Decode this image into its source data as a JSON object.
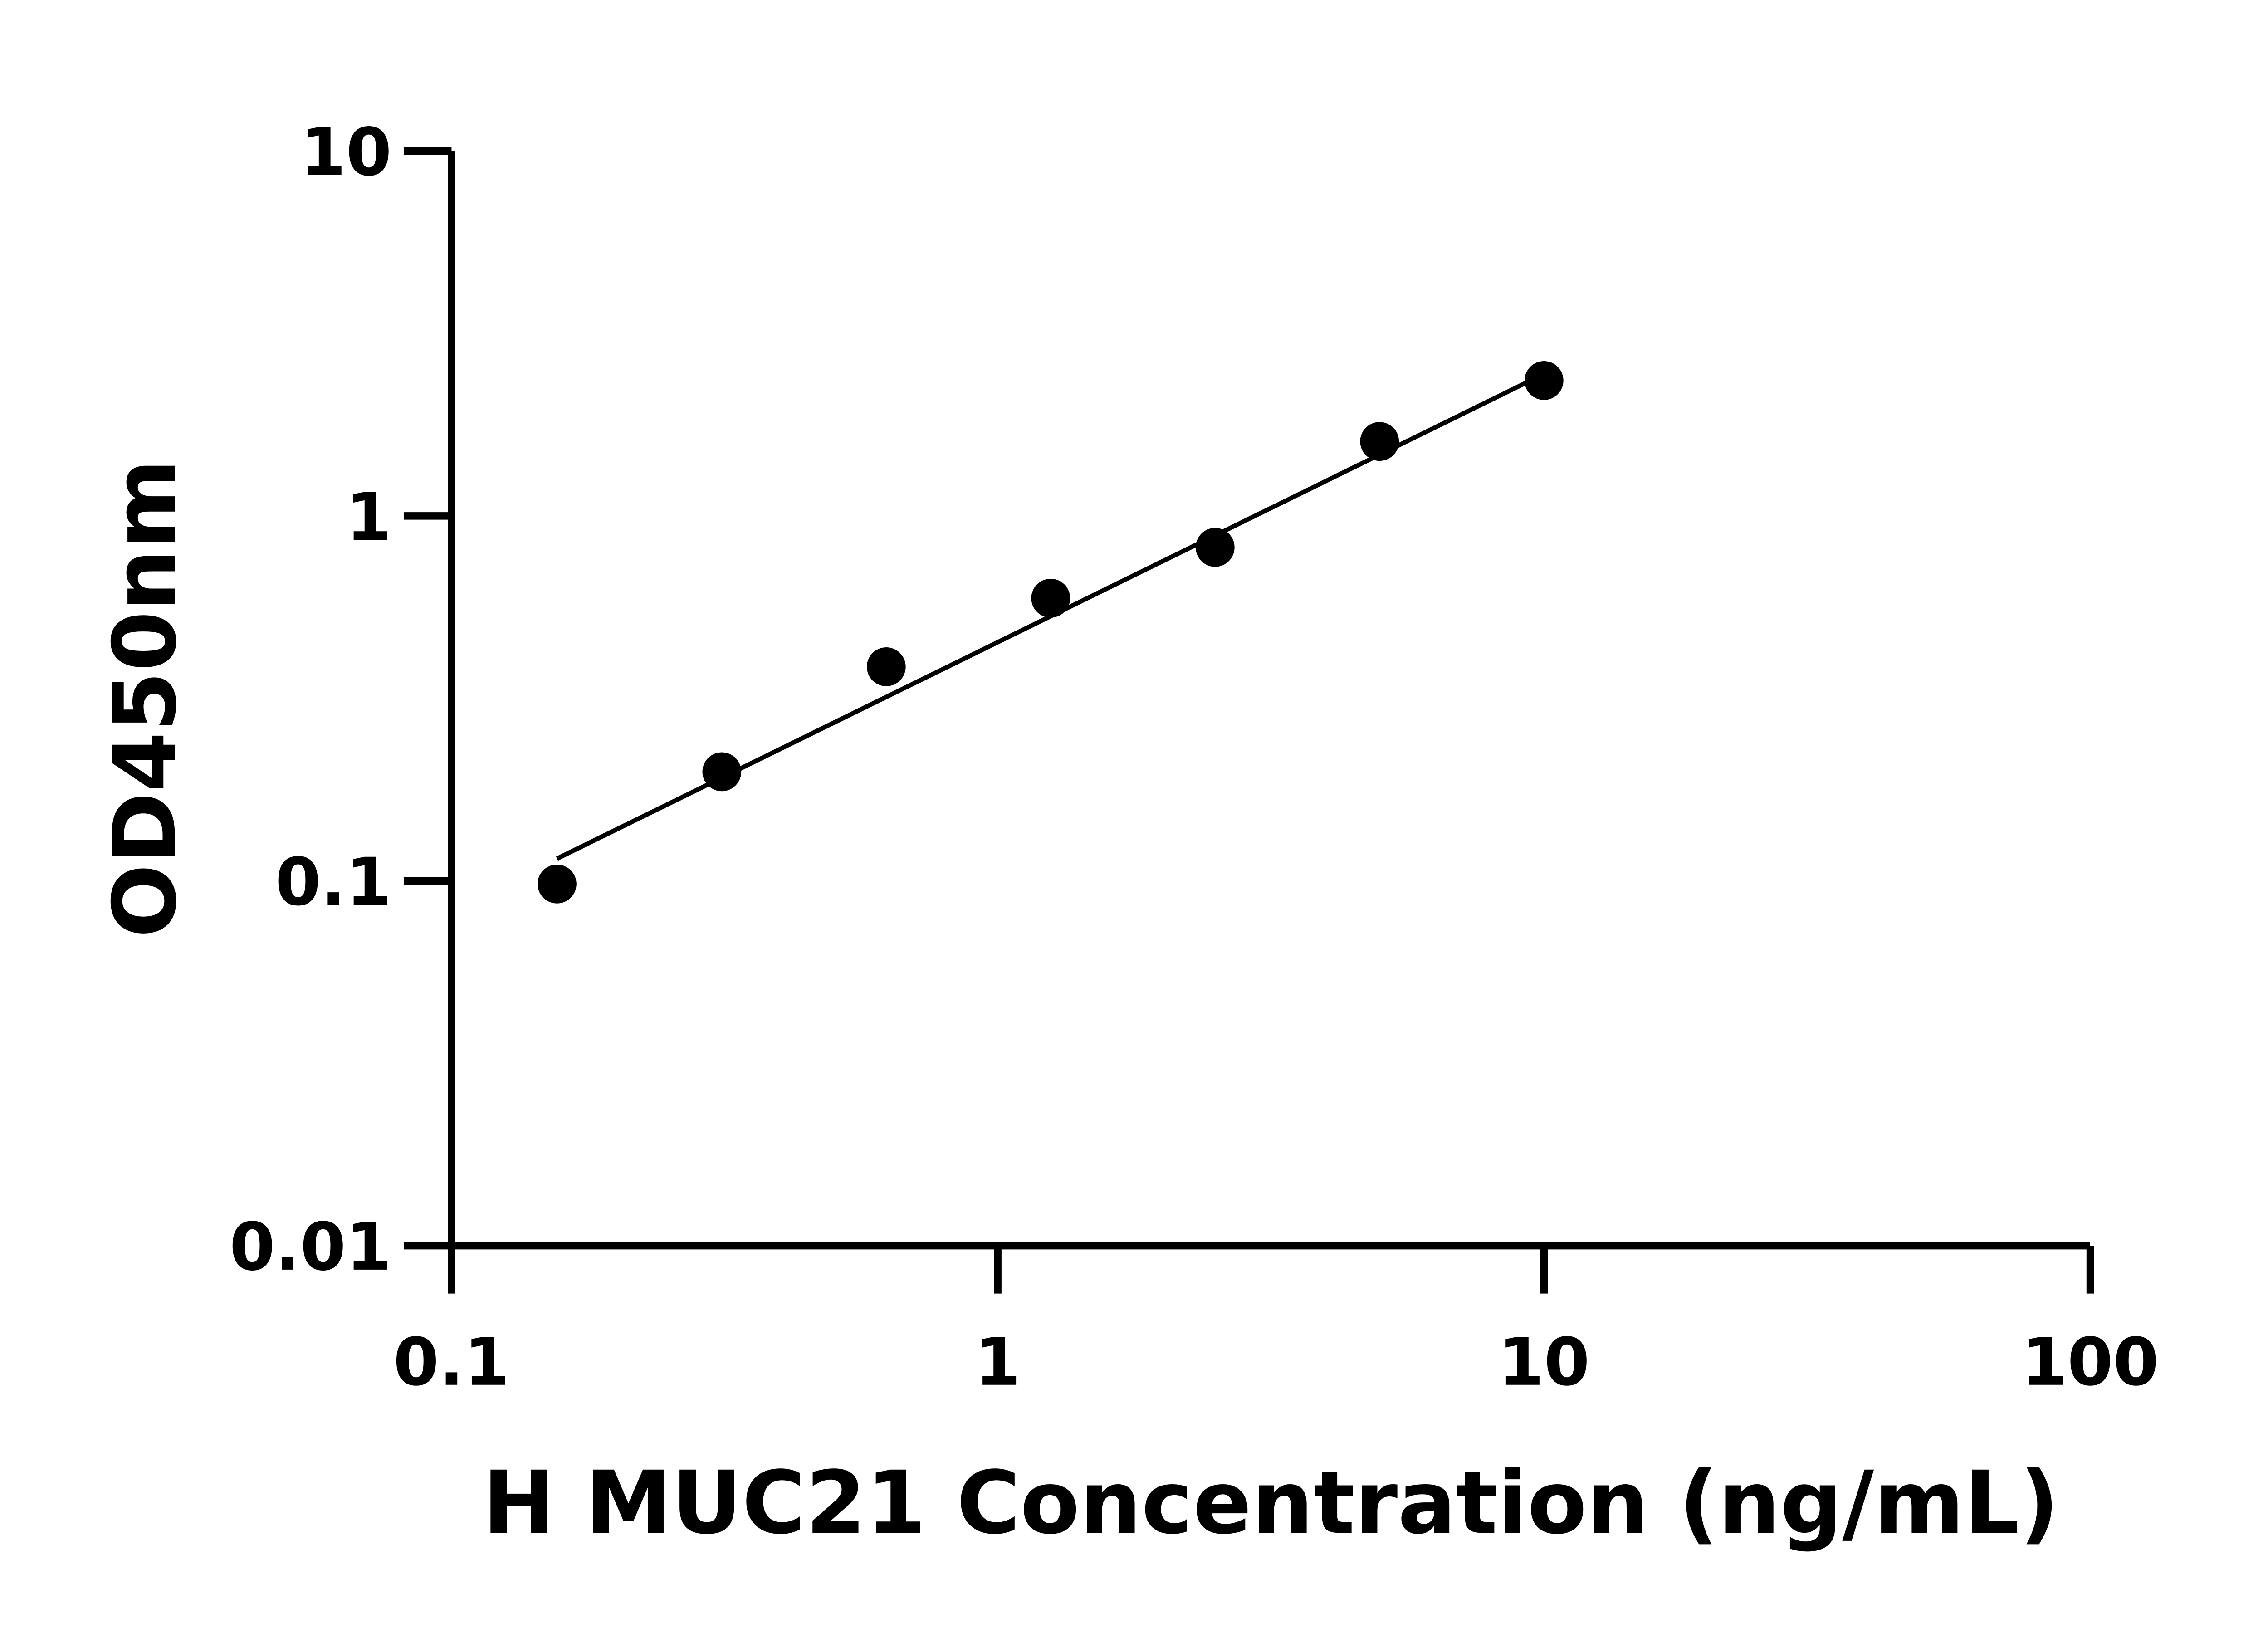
{
  "chart_data": {
    "type": "scatter",
    "title": "",
    "xlabel": "H MUC21 Concentration (ng/mL)",
    "ylabel": "OD450nm",
    "x_scale": "log",
    "y_scale": "log",
    "xlim": [
      0.1,
      100
    ],
    "ylim": [
      0.01,
      10
    ],
    "x_ticks": [
      0.1,
      1,
      10,
      100
    ],
    "x_tick_labels": [
      "0.1",
      "1",
      "10",
      "100"
    ],
    "y_ticks": [
      0.01,
      0.1,
      1,
      10
    ],
    "y_tick_labels": [
      "0.01",
      "0.1",
      "1",
      "10"
    ],
    "grid": false,
    "points": [
      {
        "x": 0.156,
        "y": 0.098
      },
      {
        "x": 0.3125,
        "y": 0.199
      },
      {
        "x": 0.625,
        "y": 0.386
      },
      {
        "x": 1.25,
        "y": 0.595
      },
      {
        "x": 2.5,
        "y": 0.82
      },
      {
        "x": 5,
        "y": 1.6
      },
      {
        "x": 10,
        "y": 2.35
      }
    ],
    "fit_line": {
      "x": [
        0.156,
        10
      ],
      "y": [
        0.115,
        2.45
      ]
    },
    "colors": {
      "points": "#000000",
      "line": "#000000",
      "axes": "#000000"
    }
  }
}
